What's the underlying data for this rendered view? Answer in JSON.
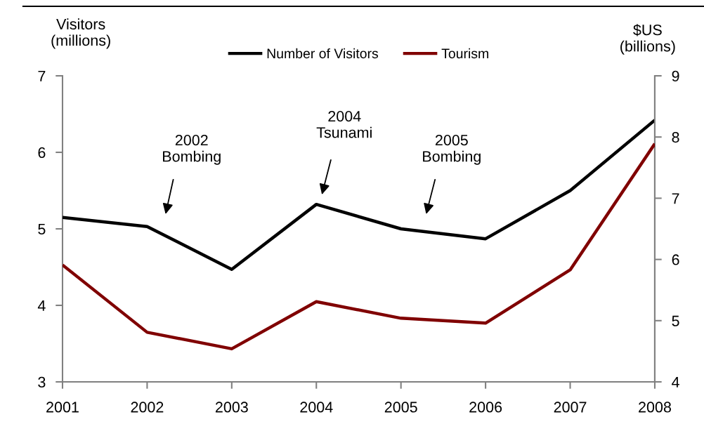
{
  "chart_data": {
    "type": "line",
    "ylabel": "Visitors\n(millions)",
    "y2label": "$US\n(billions)",
    "x": [
      2001,
      2002,
      2003,
      2004,
      2005,
      2006,
      2007,
      2008
    ],
    "series": [
      {
        "name": "Number of Visitors",
        "color": "#000000",
        "values": [
          5.15,
          5.03,
          4.47,
          5.32,
          5.0,
          4.87,
          5.5,
          6.42
        ]
      },
      {
        "name": "Tourism",
        "color": "#800000",
        "axis": "y2",
        "values": [
          5.91,
          4.81,
          4.54,
          5.31,
          5.04,
          4.96,
          5.83,
          7.89
        ]
      }
    ],
    "xlim": [
      2001,
      2008
    ],
    "xticks": [
      2001,
      2002,
      2003,
      2004,
      2005,
      2006,
      2007,
      2008
    ],
    "ylim": [
      3,
      7
    ],
    "yticks": [
      3,
      4,
      5,
      6,
      7
    ],
    "y2lim": [
      4,
      9
    ],
    "y2ticks": [
      4,
      5,
      6,
      7,
      8,
      9
    ],
    "legend": "top",
    "grid": false,
    "line_style": "solid",
    "annotations": [
      "2002\nBombing",
      "2004\nTsunami",
      "2005\nBombing"
    ]
  }
}
